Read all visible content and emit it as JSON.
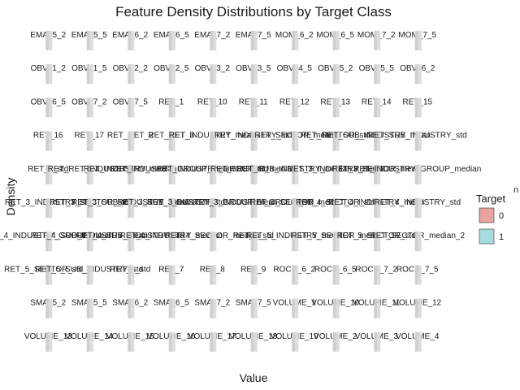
{
  "chart_data": {
    "type": "area",
    "title": "Feature Density Distributions by Target Class",
    "xlabel": "Value",
    "ylabel": "Density",
    "grid": false,
    "legend": {
      "title": "Target",
      "placement": "right",
      "entries": [
        {
          "label": "0",
          "color": "#E8A3A0"
        },
        {
          "label": "1",
          "color": "#A6DCDF"
        }
      ]
    },
    "facet_rows": 10,
    "facet_cols": 10,
    "facets": [
      "EMA_5_2",
      "EMA_5_5",
      "EMA_6_2",
      "EMA_6_5",
      "EMA_7_2",
      "EMA_7_5",
      "MOM_6_2",
      "MOM_6_5",
      "MOM_7_2",
      "MOM_7_5",
      "OBV_1_2",
      "OBV_1_5",
      "OBV_2_2",
      "OBV_2_5",
      "OBV_3_2",
      "OBV_3_5",
      "OBV_4_5",
      "OBV_5_2",
      "OBV_5_5",
      "OBV_6_2",
      "OBV_6_5",
      "OBV_7_2",
      "OBV_7_5",
      "RET_1",
      "RET_10",
      "RET_11",
      "RET_12",
      "RET_13",
      "RET_14",
      "RET_15",
      "RET_16",
      "RET_17",
      "RET_RET_2",
      "RET_RET_3",
      "RET_INDUSTRY_mean",
      "RET_INDUSTRY_std",
      "RET_SECTOR_mean",
      "RET_SECTOR_std",
      "RET_SUB_INDUSTRY_mean",
      "RET_SUB_INDUSTRY_std",
      "RET_2_std",
      "RET_RET_INDUSTRY",
      "RET_INDUSTRY_median",
      "RET_INDUSTRY_GROUP_mean",
      "RET_INDUSTRY_GROUP_std",
      "RET_SECTOR_median",
      "RET_SUB_INDUSTRY_median",
      "RET_3_INDUSTRY_mean",
      "RET_3_SECTOR_mean",
      "RET_INDUSTRY_GROUP_median",
      "RET_3_INDUSTRY_std",
      "RET_3_SECTOR_std",
      "RET_3_SUB_INDUSTRY_mean",
      "RET_3_SUB_INDUSTRY_std",
      "RET_3_INDUSTRY_GROUP_mean",
      "RET_3_INDUSTRY_GROUP_std",
      "RET_4_SECTOR_mean",
      "RET_4_SECTOR_std",
      "RET_4_INDUSTRY_mean",
      "RET_4_INDUSTRY_std",
      "RET_4_INDUSTRY_GROUP_mean",
      "RET_4_SUB_INDUSTRY_mean",
      "RET_4_SUB_INDUSTRY_std",
      "RET_4_INDUSTRY_median",
      "RET_4_SECTOR_median",
      "RET_4_std",
      "RET_5_INDUSTRY_mean",
      "RET_5_SECTOR_mean",
      "RET_5_SECTOR_std",
      "RET_SECTOR_median_2",
      "RET_5_SECTOR_std_2",
      "RET_5_SUB_INDUSTRY_std",
      "RET_6_std",
      "RET_7",
      "RET_8",
      "RET_9",
      "ROCR_6_2",
      "ROCR_6_5",
      "ROCR_7_2",
      "ROCR_7_5",
      "SMA_5_2",
      "SMA_5_5",
      "SMA_6_2",
      "SMA_6_5",
      "SMA_7_2",
      "SMA_7_5",
      "VOLUME_1",
      "VOLUME_10",
      "VOLUME_11",
      "VOLUME_12",
      "VOLUME_13",
      "VOLUME_14",
      "VOLUME_15",
      "VOLUME_16",
      "VOLUME_17",
      "VOLUME_18",
      "VOLUME_19",
      "VOLUME_2",
      "VOLUME_3",
      "VOLUME_4"
    ],
    "legend_tail": "n"
  }
}
